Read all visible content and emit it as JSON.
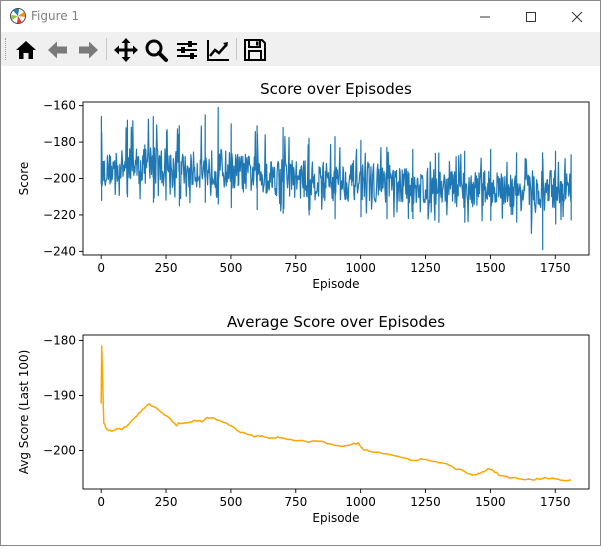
{
  "window": {
    "title": "Figure 1"
  },
  "toolbar": {
    "buttons": [
      {
        "name": "home-icon",
        "icon": "home"
      },
      {
        "name": "back-arrow-icon",
        "icon": "arrow-left"
      },
      {
        "name": "forward-arrow-icon",
        "icon": "arrow-right"
      },
      {
        "name": "pan-icon",
        "icon": "move"
      },
      {
        "name": "zoom-icon",
        "icon": "magnifier"
      },
      {
        "name": "subplots-icon",
        "icon": "sliders"
      },
      {
        "name": "edit-axis-icon",
        "icon": "line-chart"
      },
      {
        "name": "save-icon",
        "icon": "floppy-disk"
      }
    ]
  },
  "chart_data": [
    {
      "type": "line",
      "title": "Score over Episodes",
      "xlabel": "Episode",
      "ylabel": "Score",
      "xlim": [
        -70,
        1880
      ],
      "ylim": [
        -242,
        -158
      ],
      "xticks": [
        0,
        250,
        500,
        750,
        1000,
        1250,
        1500,
        1750
      ],
      "yticks": [
        -160,
        -180,
        -200,
        -220,
        -240
      ],
      "ytick_labels": [
        "−160",
        "−180",
        "−200",
        "−220",
        "−240"
      ],
      "grid": false,
      "color": "#1f77b4",
      "noise": true,
      "series": [
        {
          "x": [
            0,
            100,
            200,
            300,
            400,
            450,
            500,
            600,
            700,
            800,
            900,
            1000,
            1100,
            1200,
            1300,
            1400,
            1500,
            1600,
            1700,
            1750,
            1810
          ],
          "values": [
            -196,
            -193,
            -192,
            -196,
            -195,
            -194,
            -196,
            -198,
            -199,
            -201,
            -202,
            -201,
            -203,
            -204,
            -205,
            -206,
            -205,
            -207,
            -208,
            -206,
            -206
          ],
          "min": [
            -212,
            -210,
            -213,
            -215,
            -213,
            -214,
            -216,
            -217,
            -219,
            -220,
            -222,
            -221,
            -222,
            -222,
            -224,
            -224,
            -223,
            -224,
            -239,
            -225,
            -223
          ],
          "max": [
            -166,
            -168,
            -166,
            -171,
            -165,
            -161,
            -170,
            -171,
            -172,
            -178,
            -177,
            -179,
            -183,
            -184,
            -186,
            -185,
            -184,
            -186,
            -186,
            -185,
            -187
          ]
        }
      ]
    },
    {
      "type": "line",
      "title": "Average Score over Episodes",
      "xlabel": "Episode",
      "ylabel": "Avg Score (Last 100)",
      "xlim": [
        -70,
        1880
      ],
      "ylim": [
        -207,
        -179
      ],
      "xticks": [
        0,
        250,
        500,
        750,
        1000,
        1250,
        1500,
        1750
      ],
      "yticks": [
        -180,
        -190,
        -200
      ],
      "ytick_labels": [
        "−180",
        "−190",
        "−200"
      ],
      "grid": false,
      "color": "#ffa500",
      "noise": false,
      "series": [
        {
          "x": [
            0,
            2,
            5,
            10,
            20,
            40,
            60,
            80,
            100,
            130,
            160,
            185,
            200,
            230,
            260,
            290,
            300,
            330,
            360,
            390,
            410,
            430,
            450,
            480,
            500,
            530,
            560,
            590,
            620,
            650,
            680,
            720,
            760,
            800,
            840,
            880,
            920,
            960,
            990,
            1010,
            1040,
            1080,
            1120,
            1160,
            1200,
            1240,
            1280,
            1320,
            1360,
            1400,
            1430,
            1460,
            1490,
            1510,
            1540,
            1580,
            1620,
            1660,
            1700,
            1740,
            1780,
            1810
          ],
          "values": [
            -191.5,
            -181,
            -186,
            -195,
            -196,
            -196.5,
            -196,
            -196.2,
            -195.5,
            -194,
            -192.5,
            -191.5,
            -192,
            -193,
            -194,
            -195.5,
            -195,
            -195,
            -194.5,
            -194.8,
            -194,
            -194,
            -194.5,
            -195,
            -195.5,
            -196.5,
            -197,
            -197.5,
            -197.3,
            -197.8,
            -197.5,
            -198,
            -198.2,
            -198.5,
            -198.3,
            -198.8,
            -199.2,
            -199,
            -198.6,
            -199.8,
            -200.2,
            -200.5,
            -200.8,
            -201.3,
            -201.8,
            -201.6,
            -202,
            -202.3,
            -203.2,
            -203.8,
            -204.5,
            -204.2,
            -203.3,
            -203.6,
            -204.6,
            -205,
            -205.2,
            -205.3,
            -205.1,
            -205,
            -205.4,
            -205.3
          ]
        }
      ]
    }
  ]
}
